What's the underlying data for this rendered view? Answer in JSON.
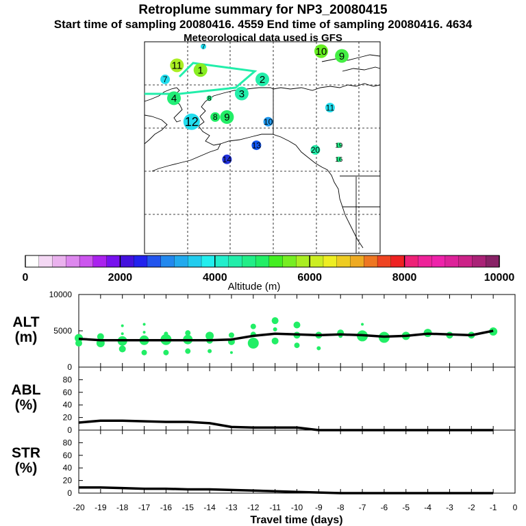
{
  "titles": {
    "title": "Retroplume summary for NP3_20080415",
    "subtitle": "Start time of sampling 20080416.  4559     End time of sampling 20080416.  4634",
    "met": "Meteorological data used is GFS"
  },
  "colors": {
    "alt_points": "#22ee66",
    "track": "#22eeaa",
    "line": "#000000"
  },
  "map_labels": [
    {
      "text": "1",
      "lon": -171,
      "lat": 74,
      "size": 2,
      "color": "#88ee22"
    },
    {
      "text": "2",
      "lon": -150,
      "lat": 72,
      "size": 2,
      "color": "#22eeaa"
    },
    {
      "text": "3",
      "lon": -157,
      "lat": 69,
      "size": 2,
      "color": "#22eeaa"
    },
    {
      "text": "4",
      "lon": -180,
      "lat": 68,
      "size": 2,
      "color": "#22ee77"
    },
    {
      "text": "7",
      "lon": -183,
      "lat": 72,
      "size": 1,
      "color": "#22ddee"
    },
    {
      "text": "7",
      "lon": -170,
      "lat": 79,
      "size": 0,
      "color": "#22ddee"
    },
    {
      "text": "8",
      "lon": -168,
      "lat": 68,
      "size": 0,
      "color": "#22ee88"
    },
    {
      "text": "8",
      "lon": -166,
      "lat": 64,
      "size": 1,
      "color": "#22ee66"
    },
    {
      "text": "9",
      "lon": -162,
      "lat": 64,
      "size": 2,
      "color": "#22ee66"
    },
    {
      "text": "9",
      "lon": -123,
      "lat": 77,
      "size": 2,
      "color": "#44ee44"
    },
    {
      "text": "10",
      "lon": -130,
      "lat": 78,
      "size": 2,
      "color": "#66ee22"
    },
    {
      "text": "10",
      "lon": -148,
      "lat": 63,
      "size": 1,
      "color": "#2299ee"
    },
    {
      "text": "11",
      "lon": -179,
      "lat": 75,
      "size": 2,
      "color": "#aaee22"
    },
    {
      "text": "12",
      "lon": -174,
      "lat": 63,
      "size": 3,
      "color": "#22ddee"
    },
    {
      "text": "11",
      "lon": -127,
      "lat": 66,
      "size": 1,
      "color": "#22ddee"
    },
    {
      "text": "13",
      "lon": -152,
      "lat": 58,
      "size": 1,
      "color": "#1155ee"
    },
    {
      "text": "14",
      "lon": -162,
      "lat": 55,
      "size": 1,
      "color": "#2233dd"
    },
    {
      "text": "20",
      "lon": -132,
      "lat": 57,
      "size": 1,
      "color": "#22eeaa"
    },
    {
      "text": "19",
      "lon": -124,
      "lat": 58,
      "size": 0,
      "color": "#22ee88"
    },
    {
      "text": "16",
      "lon": -124,
      "lat": 55,
      "size": 0,
      "color": "#22ee88"
    }
  ],
  "colorbar": {
    "ticks": [
      "0",
      "2000",
      "4000",
      "6000",
      "8000",
      "10000"
    ],
    "tick_values": [
      0,
      2000,
      4000,
      6000,
      8000,
      10000
    ],
    "label": "Altitude (m)",
    "colors": [
      "#ffffff",
      "#f4d8f4",
      "#eab2ee",
      "#dd88ee",
      "#cc55ee",
      "#aa22ee",
      "#7711ee",
      "#4411dd",
      "#2222ee",
      "#2255ee",
      "#2288ee",
      "#22aaee",
      "#22ccee",
      "#22eeee",
      "#22eecc",
      "#22eeaa",
      "#22ee88",
      "#22ee66",
      "#44ee22",
      "#77ee22",
      "#aaee22",
      "#ccee22",
      "#eeee22",
      "#eecc22",
      "#eeaa22",
      "#ee7722",
      "#ee4422",
      "#ee2222",
      "#ee2277",
      "#ee2299",
      "#ee22aa",
      "#dd2299",
      "#cc2288",
      "#aa2277",
      "#882266"
    ]
  },
  "chart_data": [
    {
      "type": "scatter",
      "name": "ALT",
      "ylabel": "ALT\n(m)",
      "ylabel_lines": [
        "ALT",
        "(m)"
      ],
      "ylim": [
        0,
        10000
      ],
      "yticks": [
        0,
        5000,
        10000
      ],
      "ytick_labels": [
        "0",
        "5000",
        "10000"
      ],
      "x": [
        -20,
        -19,
        -18,
        -17,
        -16,
        -15,
        -14,
        -13,
        -12,
        -11,
        -10,
        -9,
        -8,
        -7,
        -6,
        -5,
        -4,
        -3,
        -2,
        -1
      ],
      "line": [
        3900,
        3700,
        3700,
        3700,
        3700,
        3700,
        3700,
        3800,
        4300,
        4600,
        4500,
        4400,
        4500,
        4400,
        4200,
        4300,
        4600,
        4500,
        4400,
        5000
      ],
      "points": [
        {
          "x": -20,
          "y": 4000,
          "s": 6
        },
        {
          "x": -20,
          "y": 3300,
          "s": 5
        },
        {
          "x": -19,
          "y": 4200,
          "s": 5
        },
        {
          "x": -19,
          "y": 3300,
          "s": 6
        },
        {
          "x": -18,
          "y": 5700,
          "s": 2
        },
        {
          "x": -18,
          "y": 4600,
          "s": 2
        },
        {
          "x": -18,
          "y": 3600,
          "s": 7
        },
        {
          "x": -18,
          "y": 2500,
          "s": 5
        },
        {
          "x": -17,
          "y": 5900,
          "s": 2
        },
        {
          "x": -17,
          "y": 4800,
          "s": 2
        },
        {
          "x": -17,
          "y": 3700,
          "s": 7
        },
        {
          "x": -17,
          "y": 2000,
          "s": 4
        },
        {
          "x": -16,
          "y": 4600,
          "s": 3
        },
        {
          "x": -16,
          "y": 3800,
          "s": 8
        },
        {
          "x": -16,
          "y": 2000,
          "s": 4
        },
        {
          "x": -15,
          "y": 4700,
          "s": 4
        },
        {
          "x": -15,
          "y": 3800,
          "s": 7
        },
        {
          "x": -15,
          "y": 2200,
          "s": 4
        },
        {
          "x": -14,
          "y": 4300,
          "s": 6
        },
        {
          "x": -14,
          "y": 3700,
          "s": 5
        },
        {
          "x": -14,
          "y": 2200,
          "s": 3
        },
        {
          "x": -13,
          "y": 4400,
          "s": 4
        },
        {
          "x": -13,
          "y": 3500,
          "s": 5
        },
        {
          "x": -13,
          "y": 2000,
          "s": 2
        },
        {
          "x": -12,
          "y": 5600,
          "s": 4
        },
        {
          "x": -12,
          "y": 4500,
          "s": 4
        },
        {
          "x": -12,
          "y": 3300,
          "s": 8
        },
        {
          "x": -11,
          "y": 6400,
          "s": 5
        },
        {
          "x": -11,
          "y": 5200,
          "s": 3
        },
        {
          "x": -11,
          "y": 3600,
          "s": 5
        },
        {
          "x": -10,
          "y": 5800,
          "s": 5
        },
        {
          "x": -10,
          "y": 4400,
          "s": 5
        },
        {
          "x": -10,
          "y": 3000,
          "s": 4
        },
        {
          "x": -9,
          "y": 4400,
          "s": 5
        },
        {
          "x": -9,
          "y": 2600,
          "s": 3
        },
        {
          "x": -8,
          "y": 4700,
          "s": 5
        },
        {
          "x": -8,
          "y": 4300,
          "s": 3
        },
        {
          "x": -7,
          "y": 5900,
          "s": 2
        },
        {
          "x": -7,
          "y": 4300,
          "s": 8
        },
        {
          "x": -6,
          "y": 4100,
          "s": 8
        },
        {
          "x": -5,
          "y": 4300,
          "s": 6
        },
        {
          "x": -4,
          "y": 4700,
          "s": 6
        },
        {
          "x": -3,
          "y": 4400,
          "s": 5
        },
        {
          "x": -2,
          "y": 4400,
          "s": 5
        },
        {
          "x": -1,
          "y": 4900,
          "s": 6
        }
      ]
    },
    {
      "type": "line",
      "name": "ABL",
      "ylabel": "ABL\n(%)",
      "ylabel_lines": [
        "ABL",
        "(%)"
      ],
      "ylim": [
        0,
        100
      ],
      "yticks": [
        0,
        20,
        40,
        60,
        80
      ],
      "ytick_labels": [
        "0",
        "20",
        "40",
        "60",
        "80"
      ],
      "x": [
        -20,
        -19,
        -18,
        -17,
        -16,
        -15,
        -14,
        -13,
        -12,
        -11,
        -10,
        -9,
        -8,
        -7,
        -6,
        -5,
        -4,
        -3,
        -2,
        -1
      ],
      "values": [
        12,
        15,
        15,
        14,
        13,
        13,
        11,
        5,
        4,
        4,
        4,
        0,
        0,
        0,
        0,
        0,
        0,
        0,
        0,
        0
      ]
    },
    {
      "type": "line",
      "name": "STR",
      "ylabel": "STR\n(%)",
      "ylabel_lines": [
        "STR",
        "(%)"
      ],
      "ylim": [
        0,
        100
      ],
      "yticks": [
        0,
        20,
        40,
        60,
        80
      ],
      "ytick_labels": [
        "0",
        "20",
        "40",
        "60",
        "80"
      ],
      "x": [
        -20,
        -19,
        -18,
        -17,
        -16,
        -15,
        -14,
        -13,
        -12,
        -11,
        -10,
        -9,
        -8,
        -7,
        -6,
        -5,
        -4,
        -3,
        -2,
        -1
      ],
      "values": [
        9,
        9,
        8,
        7,
        7,
        6,
        6,
        5,
        4,
        3,
        2,
        1,
        0,
        0,
        0,
        0,
        0,
        0,
        0,
        0
      ],
      "xlabel": "Travel time (days)",
      "xticks": [
        -20,
        -19,
        -18,
        -17,
        -16,
        -15,
        -14,
        -13,
        -12,
        -11,
        -10,
        -9,
        -8,
        -7,
        -6,
        -5,
        -4,
        -3,
        -2,
        -1,
        0
      ],
      "xtick_labels": [
        "-20",
        "-19",
        "-18",
        "-17",
        "-16",
        "-15",
        "-14",
        "-13",
        "-12",
        "-11",
        "-10",
        "-9",
        "-8",
        "-7",
        "-6",
        "-5",
        "-4",
        "-3",
        "-2",
        "-1",
        "0"
      ]
    }
  ]
}
